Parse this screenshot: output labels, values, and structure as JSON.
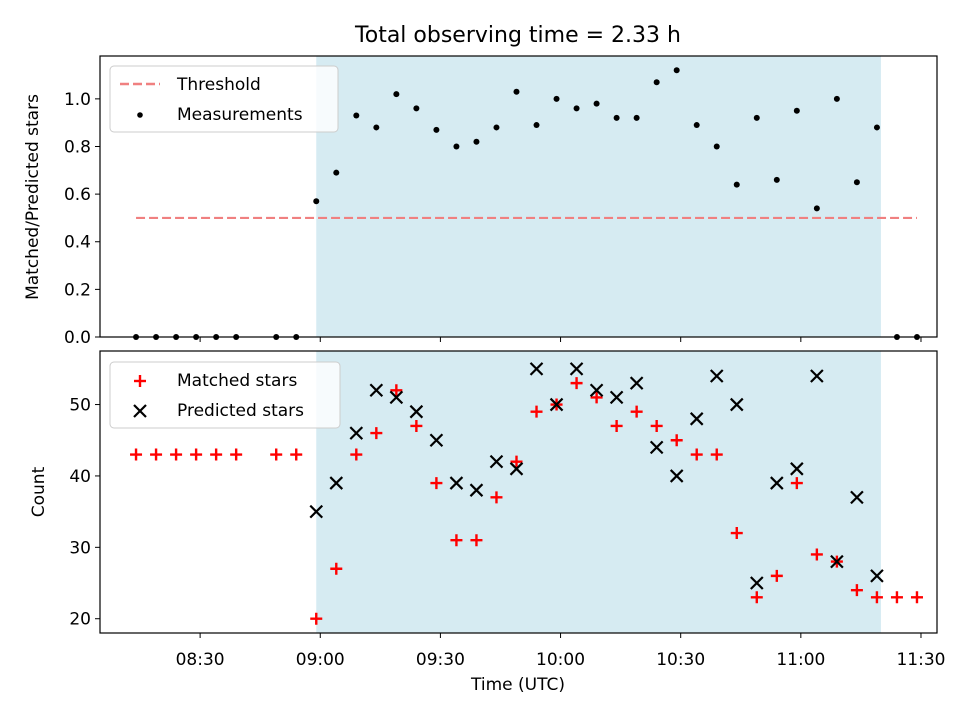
{
  "chart_data": [
    {
      "type": "scatter",
      "title": "Total observing time = 2.33 h",
      "xlabel": "",
      "ylabel": "Matched/Predicted stars",
      "ylim": [
        0,
        1.18
      ],
      "yticks": [
        "0.0",
        "0.2",
        "0.4",
        "0.6",
        "0.8",
        "1.0"
      ],
      "xticks_visible": false,
      "shaded_interval": [
        "08:59",
        "11:20"
      ],
      "shade_color": "#add8e6",
      "legend_placement": "upper-left",
      "series": [
        {
          "name": "Threshold",
          "kind": "dashed-line",
          "color": "#f08080",
          "x": [
            "08:14",
            "11:29"
          ],
          "values": [
            0.5,
            0.5
          ]
        },
        {
          "name": "Measurements",
          "kind": "points",
          "color": "#000000",
          "x": [
            "08:14",
            "08:19",
            "08:24",
            "08:29",
            "08:34",
            "08:39",
            "08:49",
            "08:54",
            "08:59",
            "09:04",
            "09:09",
            "09:14",
            "09:19",
            "09:24",
            "09:29",
            "09:34",
            "09:39",
            "09:44",
            "09:49",
            "09:54",
            "09:59",
            "10:04",
            "10:09",
            "10:14",
            "10:19",
            "10:24",
            "10:29",
            "10:34",
            "10:39",
            "10:44",
            "10:49",
            "10:54",
            "10:59",
            "11:04",
            "11:09",
            "11:14",
            "11:19",
            "11:24",
            "11:29"
          ],
          "values": [
            0,
            0,
            0,
            0,
            0,
            0,
            0,
            0,
            0.57,
            0.69,
            0.93,
            0.88,
            1.02,
            0.96,
            0.87,
            0.8,
            0.82,
            0.88,
            1.03,
            0.89,
            1.0,
            0.96,
            0.98,
            0.92,
            0.92,
            1.07,
            1.12,
            0.89,
            0.8,
            0.64,
            0.92,
            0.66,
            0.95,
            0.54,
            1.0,
            0.65,
            0.88,
            0,
            0
          ]
        }
      ]
    },
    {
      "type": "scatter",
      "title": "",
      "xlabel": "Time (UTC)",
      "ylabel": "Count",
      "ylim": [
        18,
        57.5
      ],
      "yticks": [
        "20",
        "30",
        "40",
        "50"
      ],
      "xticks": [
        "08:30",
        "09:00",
        "09:30",
        "10:00",
        "10:30",
        "11:00",
        "11:30"
      ],
      "shaded_interval": [
        "08:59",
        "11:20"
      ],
      "shade_color": "#add8e6",
      "legend_placement": "upper-left",
      "series": [
        {
          "name": "Matched stars",
          "marker": "plus",
          "color": "#ff0000",
          "x": [
            "08:14",
            "08:19",
            "08:24",
            "08:29",
            "08:34",
            "08:39",
            "08:49",
            "08:54",
            "08:59",
            "09:04",
            "09:09",
            "09:14",
            "09:19",
            "09:24",
            "09:29",
            "09:34",
            "09:39",
            "09:44",
            "09:49",
            "09:54",
            "09:59",
            "10:04",
            "10:09",
            "10:14",
            "10:19",
            "10:24",
            "10:29",
            "10:34",
            "10:39",
            "10:44",
            "10:49",
            "10:54",
            "10:59",
            "11:04",
            "11:09",
            "11:14",
            "11:19",
            "11:24",
            "11:29"
          ],
          "values": [
            43,
            43,
            43,
            43,
            43,
            43,
            43,
            43,
            20,
            27,
            43,
            46,
            52,
            47,
            39,
            31,
            31,
            37,
            42,
            49,
            50,
            53,
            51,
            47,
            49,
            47,
            45,
            43,
            43,
            32,
            23,
            26,
            39,
            29,
            28,
            24,
            23,
            23,
            23
          ]
        },
        {
          "name": "Predicted stars",
          "marker": "x",
          "color": "#000000",
          "x": [
            "08:59",
            "09:04",
            "09:09",
            "09:14",
            "09:19",
            "09:24",
            "09:29",
            "09:34",
            "09:39",
            "09:44",
            "09:49",
            "09:54",
            "09:59",
            "10:04",
            "10:09",
            "10:14",
            "10:19",
            "10:24",
            "10:29",
            "10:34",
            "10:39",
            "10:44",
            "10:49",
            "10:54",
            "10:59",
            "11:04",
            "11:09",
            "11:14",
            "11:19"
          ],
          "values": [
            35,
            39,
            46,
            52,
            51,
            49,
            45,
            39,
            38,
            42,
            41,
            55,
            50,
            55,
            52,
            51,
            53,
            44,
            40,
            48,
            54,
            50,
            25,
            39,
            41,
            54,
            28,
            37,
            26
          ]
        }
      ]
    }
  ]
}
